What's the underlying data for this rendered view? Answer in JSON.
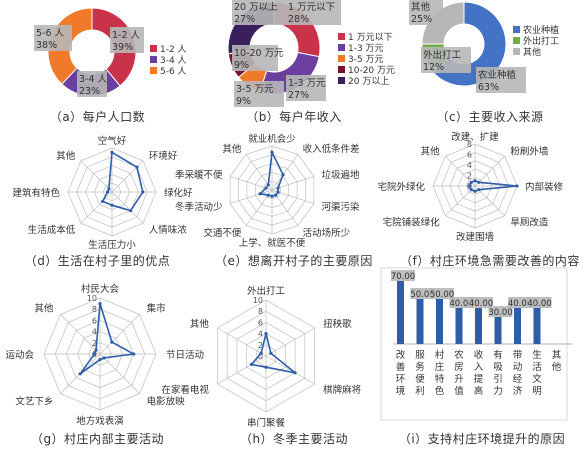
{
  "colors": {
    "red": "#c8334a",
    "purple": "#6b3fa0",
    "orange": "#f07a2a",
    "darkred": "#7a1428",
    "blue": "#4472c4",
    "green": "#70ad47",
    "darkpurple": "#3a1f5d",
    "label_bg": "#b7b7b7",
    "radar_line": "#2e5ea8",
    "bar": "#2e5ea8"
  },
  "chart_data": [
    {
      "id": "a",
      "type": "pie",
      "caption": "（a）每户人口数",
      "slices": [
        {
          "label": "1-2 人",
          "value": 39
        },
        {
          "label": "3-4 人",
          "value": 23
        },
        {
          "label": "5-6 人",
          "value": 38
        }
      ],
      "legend": [
        "1-2 人",
        "3-4 人",
        "5-6 人"
      ]
    },
    {
      "id": "b",
      "type": "pie",
      "caption": "（b）每户年收入",
      "slices": [
        {
          "label": "1 万元以下",
          "value": 28
        },
        {
          "label": "1-3 万元",
          "value": 27
        },
        {
          "label": "3-5 万元",
          "value": 9
        },
        {
          "label": "10-20 万元",
          "value": 9
        },
        {
          "label": "20 万以上",
          "value": 27
        }
      ],
      "legend": [
        "1 万元以下",
        "1-3 万元",
        "3-5 万元",
        "10-20 万元",
        "20 万以上"
      ]
    },
    {
      "id": "c",
      "type": "pie",
      "caption": "（c）主要收入来源",
      "slices": [
        {
          "label": "农业种植",
          "value": 63
        },
        {
          "label": "外出打工",
          "value": 12
        },
        {
          "label": "其他",
          "value": 25
        }
      ],
      "legend": [
        "农业种植",
        "外出打工",
        "其他"
      ]
    },
    {
      "id": "d",
      "type": "radar",
      "caption": "（d）生活在村子里的优点",
      "categories": [
        "空气好",
        "环境好",
        "绿化好",
        "人情味浓",
        "生活压力小",
        "生活成本低",
        "建筑有特色",
        "其他"
      ],
      "values": [
        9,
        8,
        7,
        6,
        3,
        3,
        1,
        1
      ],
      "max": 10,
      "ticks": []
    },
    {
      "id": "e",
      "type": "radar",
      "caption": "（e）想离开村子的主要原因",
      "categories": [
        "就业机会少",
        "收入低条件差",
        "垃圾遍地",
        "河渠污染",
        "活动场所少",
        "上学、就医不便",
        "交通不便",
        "冬季活动少",
        "季采暖不便",
        "其他"
      ],
      "values": [
        6,
        3,
        1,
        1,
        1,
        1,
        1,
        2,
        1,
        1
      ],
      "max": 7,
      "ticks": []
    },
    {
      "id": "f",
      "type": "radar",
      "caption": "（f）村庄环境急需要改善的内容",
      "categories": [
        "改建、扩建",
        "粉刷外墙",
        "内部装修",
        "旱厕改造",
        "改建围墙",
        "宅院铺装绿化",
        "宅院外绿化",
        "其他"
      ],
      "values": [
        1,
        1,
        8,
        1,
        1,
        1,
        1,
        1
      ],
      "max": 8,
      "ticks": [
        "0",
        "2",
        "4",
        "6",
        "8"
      ]
    },
    {
      "id": "g",
      "type": "radar",
      "caption": "（g）村庄内部主要活动",
      "categories": [
        "村民大会",
        "集市",
        "节日活动",
        "电影放映",
        "地方戏表演",
        "文艺下乡",
        "运动会",
        "其他"
      ],
      "values": [
        9,
        3,
        6,
        1,
        1,
        5,
        1,
        1
      ],
      "max": 10,
      "ticks": [
        "0",
        "2",
        "4",
        "6",
        "8",
        "10"
      ]
    },
    {
      "id": "h",
      "type": "radar",
      "caption": "（h）冬季主要活动",
      "categories": [
        "外出打工",
        "扭秧歌",
        "棋牌麻将",
        "串门聚餐",
        "在家看电视",
        "其他"
      ],
      "values": [
        4,
        1,
        6,
        2,
        3,
        1
      ],
      "max": 10,
      "ticks": [
        "0",
        "2",
        "4",
        "6",
        "8",
        "10"
      ]
    },
    {
      "id": "i",
      "type": "bar",
      "caption": "（i）支持村庄环境提升的原因",
      "categories": [
        "改善环境",
        "服务便利",
        "村庄特色",
        "农房升值",
        "收入提高",
        "有吸引力",
        "带动经济",
        "生活文明",
        "其他"
      ],
      "values": [
        70,
        50,
        50,
        40,
        40,
        30,
        40,
        40,
        0
      ],
      "value_labels": [
        "70.00",
        "50.00",
        "50.00",
        "40.00",
        "40.00",
        "30.00",
        "40.00",
        "40.00",
        ""
      ],
      "ylim": [
        0,
        80
      ]
    }
  ]
}
